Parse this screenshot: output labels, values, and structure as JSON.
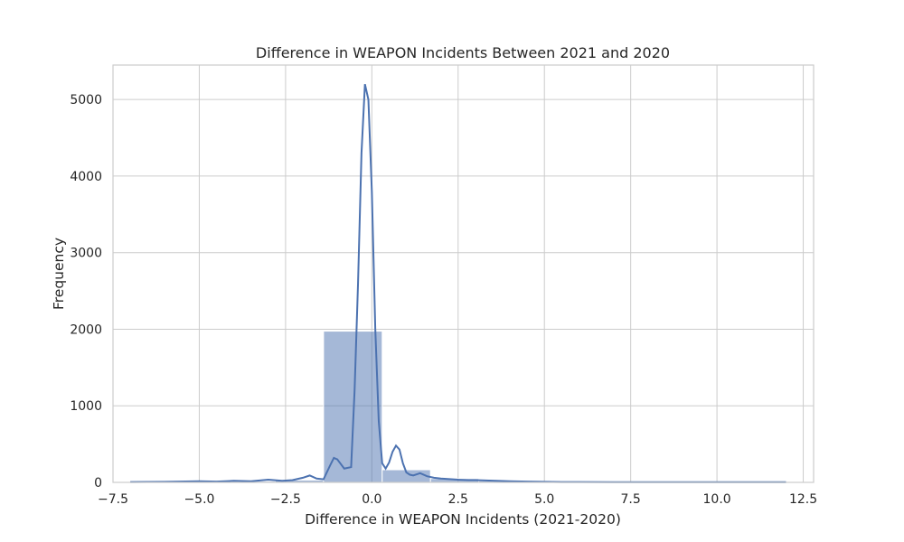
{
  "chart_data": {
    "type": "histogram",
    "title": "Difference in WEAPON Incidents Between 2021 and 2020",
    "xlabel": "Difference in WEAPON Incidents (2021-2020)",
    "ylabel": "Frequency",
    "xlim": [
      -7.5,
      12.8
    ],
    "ylim": [
      0,
      5450
    ],
    "xticks": [
      -7.5,
      -5.0,
      -2.5,
      0.0,
      2.5,
      5.0,
      7.5,
      10.0,
      12.5
    ],
    "xtick_labels": [
      "−7.5",
      "−5.0",
      "−2.5",
      "0.0",
      "2.5",
      "5.0",
      "7.5",
      "10.0",
      "12.5"
    ],
    "yticks": [
      0,
      1000,
      2000,
      3000,
      4000,
      5000
    ],
    "ytick_labels": [
      "0",
      "1000",
      "2000",
      "3000",
      "4000",
      "5000"
    ],
    "grid": true,
    "bar_color": "#4c72b0",
    "line_color": "#4c72b0",
    "bins": [
      {
        "x0": -7.0,
        "x1": -5.6,
        "value": 5
      },
      {
        "x0": -5.6,
        "x1": -4.2,
        "value": 10
      },
      {
        "x0": -4.2,
        "x1": -2.8,
        "value": 15
      },
      {
        "x0": -2.8,
        "x1": -1.4,
        "value": 30
      },
      {
        "x0": -1.4,
        "x1": 0.3,
        "value": 1975
      },
      {
        "x0": 0.3,
        "x1": 1.7,
        "value": 165
      },
      {
        "x0": 1.7,
        "x1": 3.1,
        "value": 50
      },
      {
        "x0": 3.1,
        "x1": 4.5,
        "value": 20
      },
      {
        "x0": 4.5,
        "x1": 5.9,
        "value": 8
      },
      {
        "x0": 5.9,
        "x1": 7.3,
        "value": 5
      },
      {
        "x0": 7.3,
        "x1": 8.7,
        "value": 3
      },
      {
        "x0": 8.7,
        "x1": 10.1,
        "value": 2
      },
      {
        "x0": 10.1,
        "x1": 11.5,
        "value": 2
      },
      {
        "x0": 11.5,
        "x1": 12.0,
        "value": 1
      }
    ],
    "kde": {
      "x": [
        -7.0,
        -6.0,
        -5.0,
        -4.5,
        -4.0,
        -3.5,
        -3.0,
        -2.6,
        -2.3,
        -2.0,
        -1.8,
        -1.6,
        -1.4,
        -1.2,
        -1.1,
        -1.0,
        -0.8,
        -0.6,
        -0.5,
        -0.4,
        -0.3,
        -0.2,
        -0.1,
        0.0,
        0.1,
        0.2,
        0.3,
        0.4,
        0.5,
        0.6,
        0.7,
        0.8,
        0.9,
        1.0,
        1.1,
        1.2,
        1.4,
        1.6,
        1.8,
        2.0,
        2.2,
        2.5,
        2.8,
        3.0,
        3.3,
        3.6,
        4.0,
        4.5,
        5.0,
        5.5,
        6.0,
        7.0,
        8.0,
        9.0,
        10.0,
        11.0,
        12.0
      ],
      "y": [
        5,
        8,
        15,
        10,
        20,
        15,
        35,
        20,
        30,
        60,
        90,
        50,
        40,
        230,
        320,
        300,
        180,
        200,
        1200,
        2600,
        4300,
        5200,
        5000,
        3800,
        2000,
        800,
        250,
        180,
        260,
        400,
        480,
        430,
        250,
        130,
        100,
        90,
        120,
        80,
        60,
        50,
        45,
        35,
        30,
        30,
        25,
        20,
        15,
        10,
        8,
        5,
        5,
        3,
        3,
        3,
        3,
        3,
        3
      ]
    }
  }
}
